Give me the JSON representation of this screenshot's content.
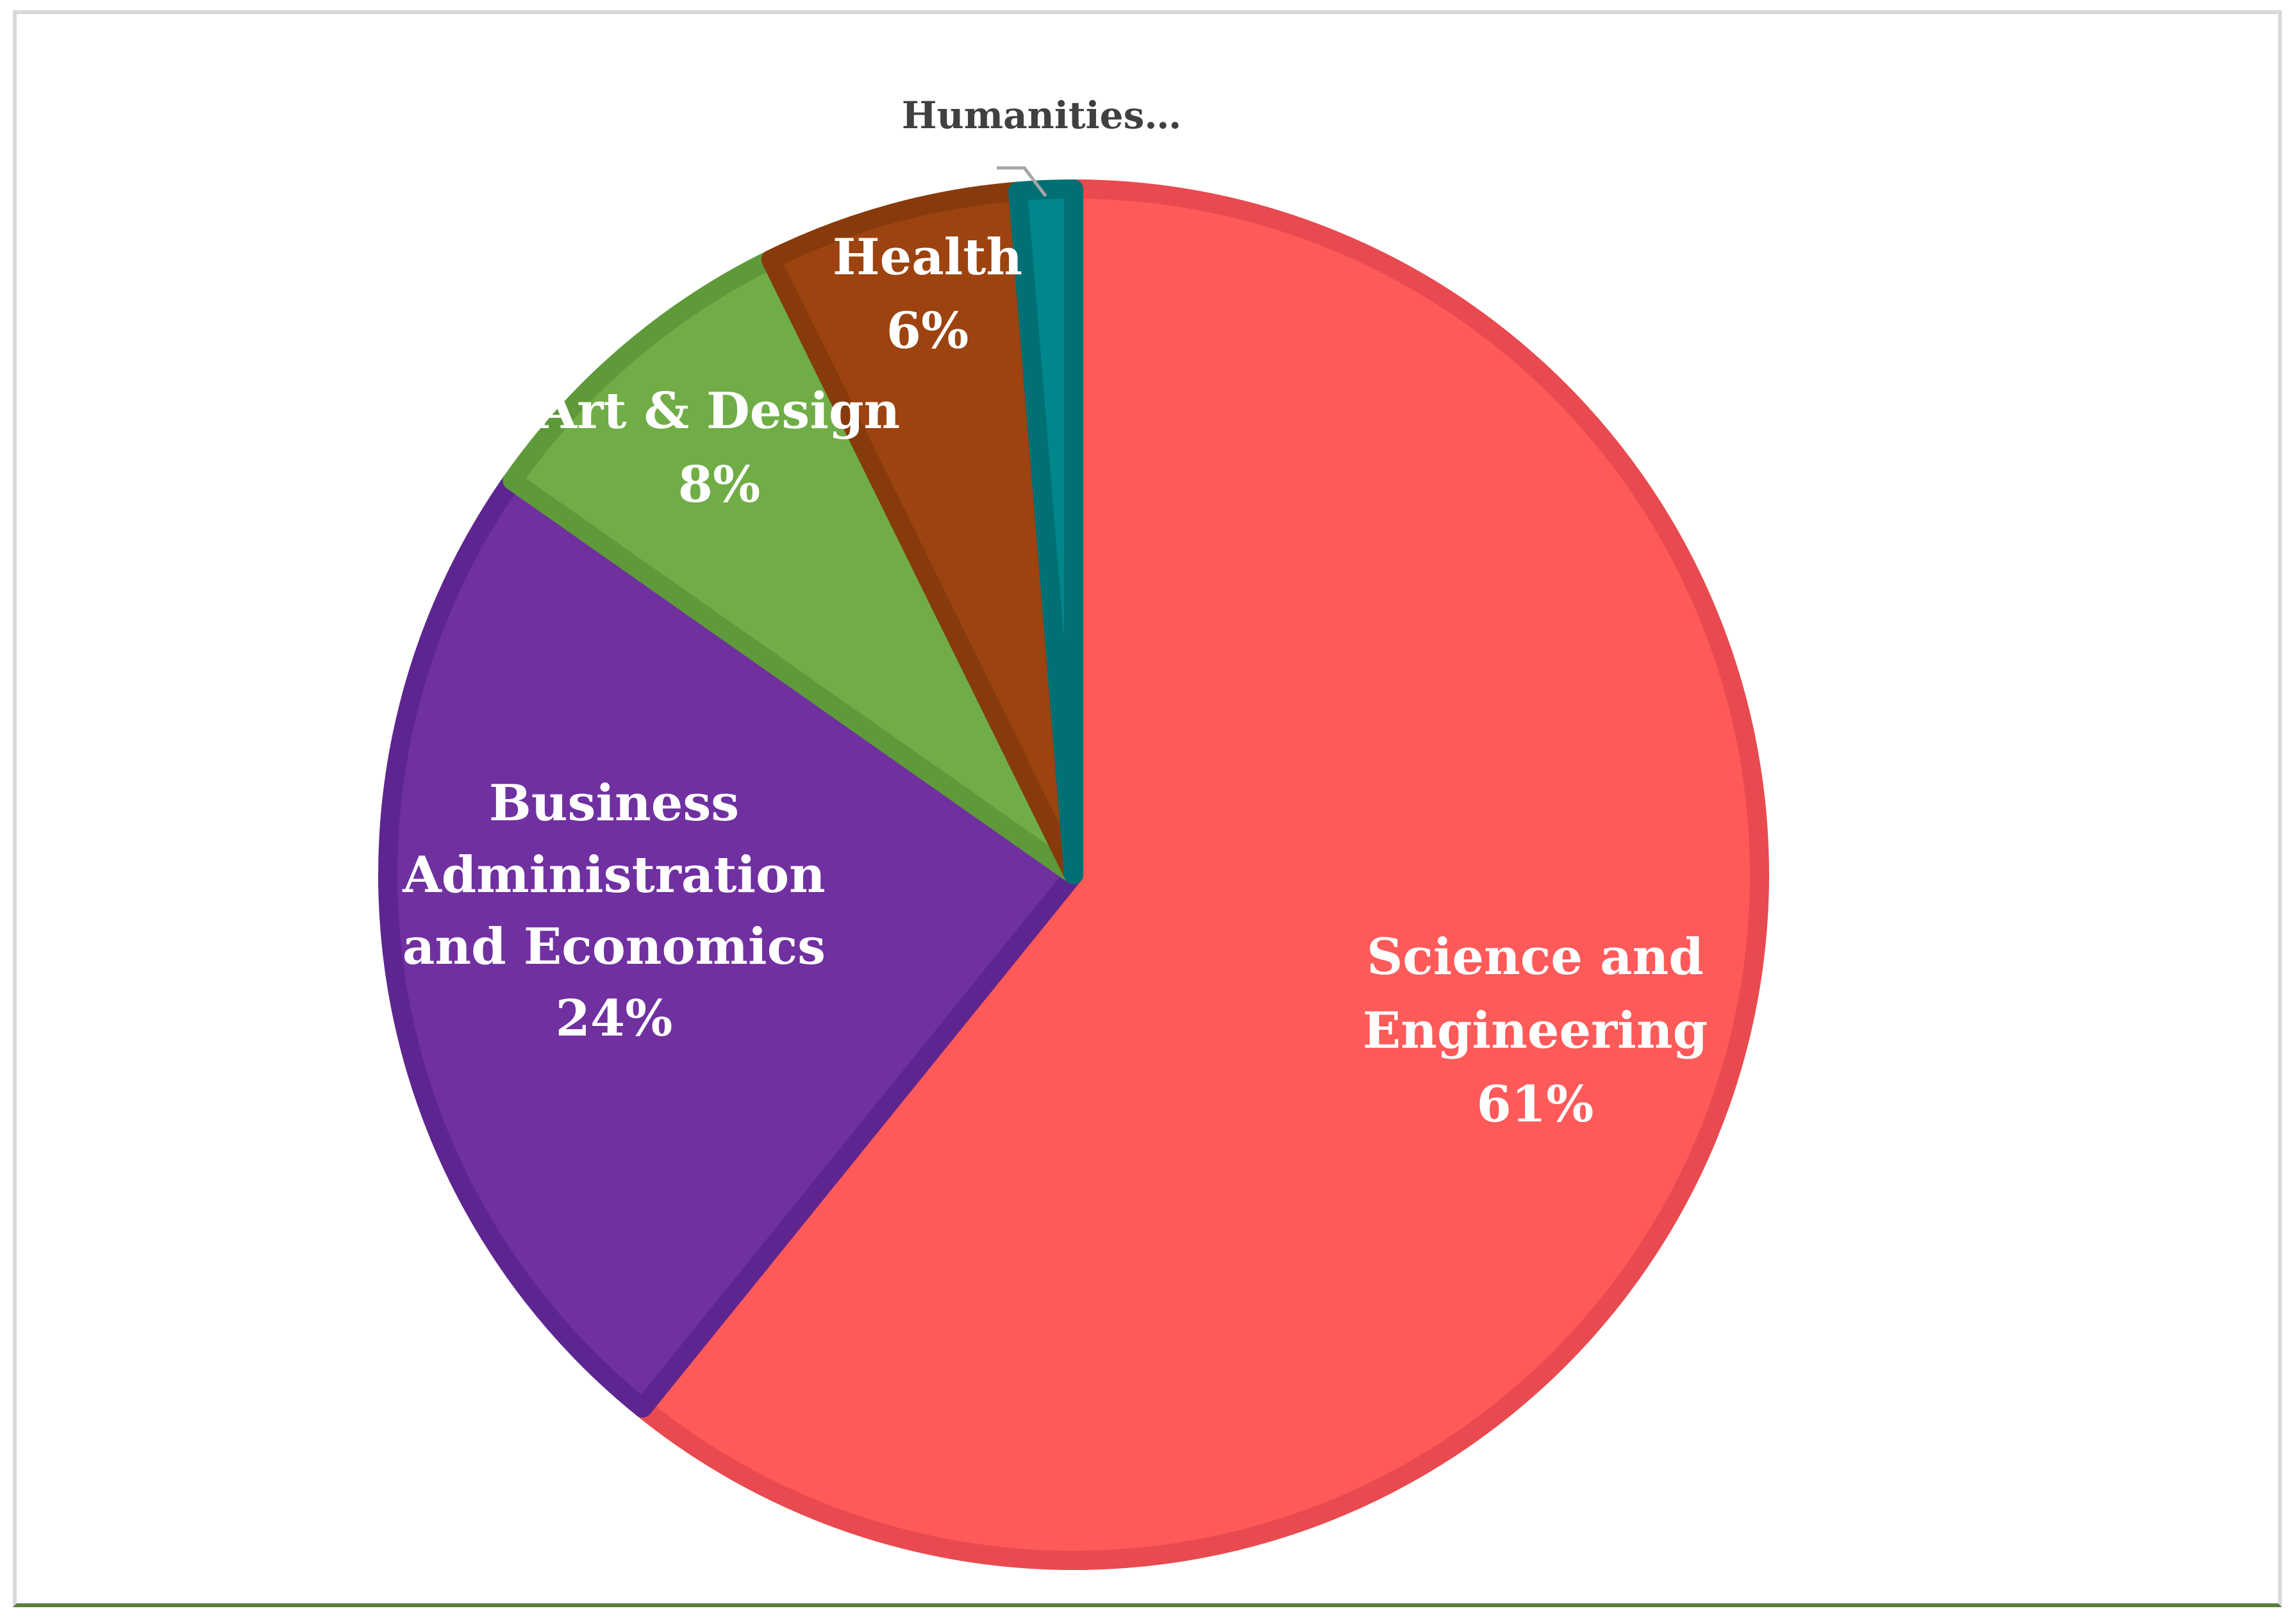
{
  "chart_data": {
    "type": "pie",
    "title": "",
    "start_angle_deg": 0,
    "direction": "clockwise",
    "slices": [
      {
        "label_lines": [
          "Science and",
          "Engineering"
        ],
        "value_label": "61%",
        "value": 61,
        "fill": "#ff5a5a",
        "stroke": "#e84a4f"
      },
      {
        "label_lines": [
          "Business",
          "Administration",
          "and Economics"
        ],
        "value_label": "24%",
        "value": 24,
        "fill": "#7030a0",
        "stroke": "#5e2590"
      },
      {
        "label_lines": [
          "Art & Design"
        ],
        "value_label": "8%",
        "value": 8,
        "fill": "#70ad47",
        "stroke": "#5e9a3a"
      },
      {
        "label_lines": [
          "Health"
        ],
        "value_label": "6%",
        "value": 6,
        "fill": "#9c4310",
        "stroke": "#873a0c"
      },
      {
        "label_lines": [
          "Humanities…"
        ],
        "value_label": "",
        "value": 1.3,
        "fill": "#00868b",
        "stroke": "#007075"
      }
    ]
  }
}
